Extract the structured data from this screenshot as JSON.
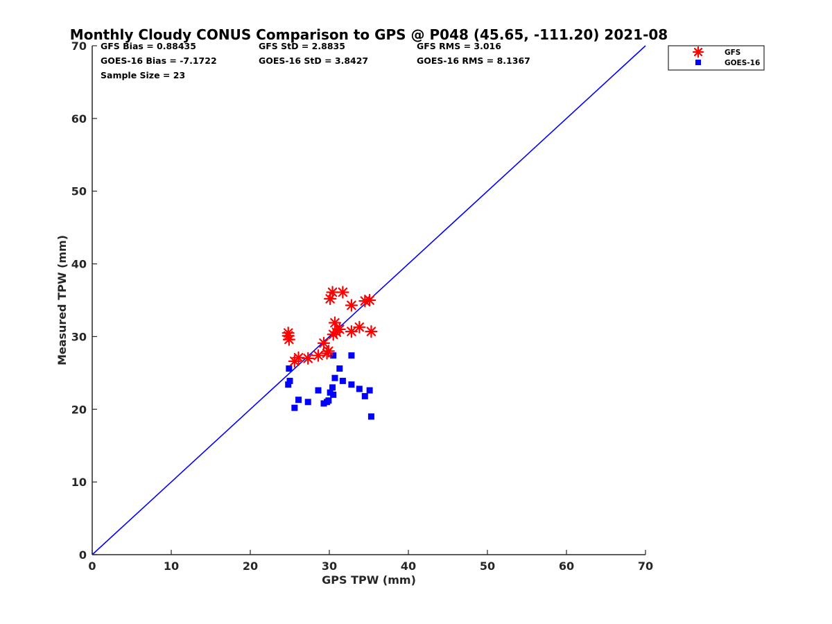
{
  "chart_data": {
    "type": "scatter",
    "title": "Monthly Cloudy CONUS Comparison to GPS @ P048 (45.65, -111.20) 2021-08",
    "xlabel": "GPS TPW (mm)",
    "ylabel": "Measured TPW (mm)",
    "xlim": [
      0,
      70
    ],
    "ylim": [
      0,
      70
    ],
    "xticks": [
      "0",
      "10",
      "20",
      "30",
      "40",
      "50",
      "60",
      "70"
    ],
    "yticks": [
      "0",
      "10",
      "20",
      "30",
      "40",
      "50",
      "60",
      "70"
    ],
    "grid": false,
    "legend_position": "outside top-right",
    "reference_line": {
      "name": "1:1 line",
      "x": [
        0,
        70
      ],
      "y": [
        0,
        70
      ],
      "color": "#0000ff"
    },
    "stats": {
      "gfs_bias": "GFS Bias = 0.88435",
      "gfs_std": "GFS StD = 2.8835",
      "gfs_rms": "GFS RMS = 3.016",
      "goes_bias": "GOES-16 Bias = -7.1722",
      "goes_std": "GOES-16 StD = 3.8427",
      "goes_rms": "GOES-16 RMS = 8.1367",
      "sample_size": "Sample Size = 23"
    },
    "series": [
      {
        "name": "GFS",
        "marker": "asterisk",
        "color": "#ff0000",
        "x": [
          24.8,
          24.8,
          24.9,
          25.6,
          26.1,
          27.3,
          28.6,
          29.3,
          29.7,
          29.9,
          30.1,
          30.4,
          30.5,
          30.7,
          30.9,
          31.3,
          31.7,
          32.8,
          32.8,
          33.8,
          34.5,
          35.1,
          35.3
        ],
        "y": [
          30.5,
          30.1,
          29.6,
          26.6,
          27.1,
          27.0,
          27.4,
          29.1,
          27.7,
          28.0,
          35.2,
          36.1,
          30.3,
          31.9,
          30.6,
          31.0,
          36.1,
          34.3,
          30.7,
          31.3,
          34.9,
          35.0,
          30.7
        ]
      },
      {
        "name": "GOES-16",
        "marker": "square",
        "color": "#0000ff",
        "x": [
          24.8,
          24.9,
          25.0,
          25.6,
          26.1,
          27.3,
          28.6,
          29.3,
          29.7,
          29.9,
          30.1,
          30.4,
          30.5,
          30.5,
          30.7,
          31.3,
          31.7,
          32.8,
          32.8,
          33.8,
          34.5,
          35.1,
          35.3
        ],
        "y": [
          23.4,
          25.6,
          23.9,
          20.2,
          21.3,
          21.0,
          22.6,
          20.8,
          21.0,
          21.2,
          22.3,
          23.0,
          27.4,
          22.0,
          24.3,
          25.6,
          23.9,
          27.4,
          23.4,
          22.8,
          21.8,
          22.6,
          19.0
        ]
      }
    ]
  }
}
